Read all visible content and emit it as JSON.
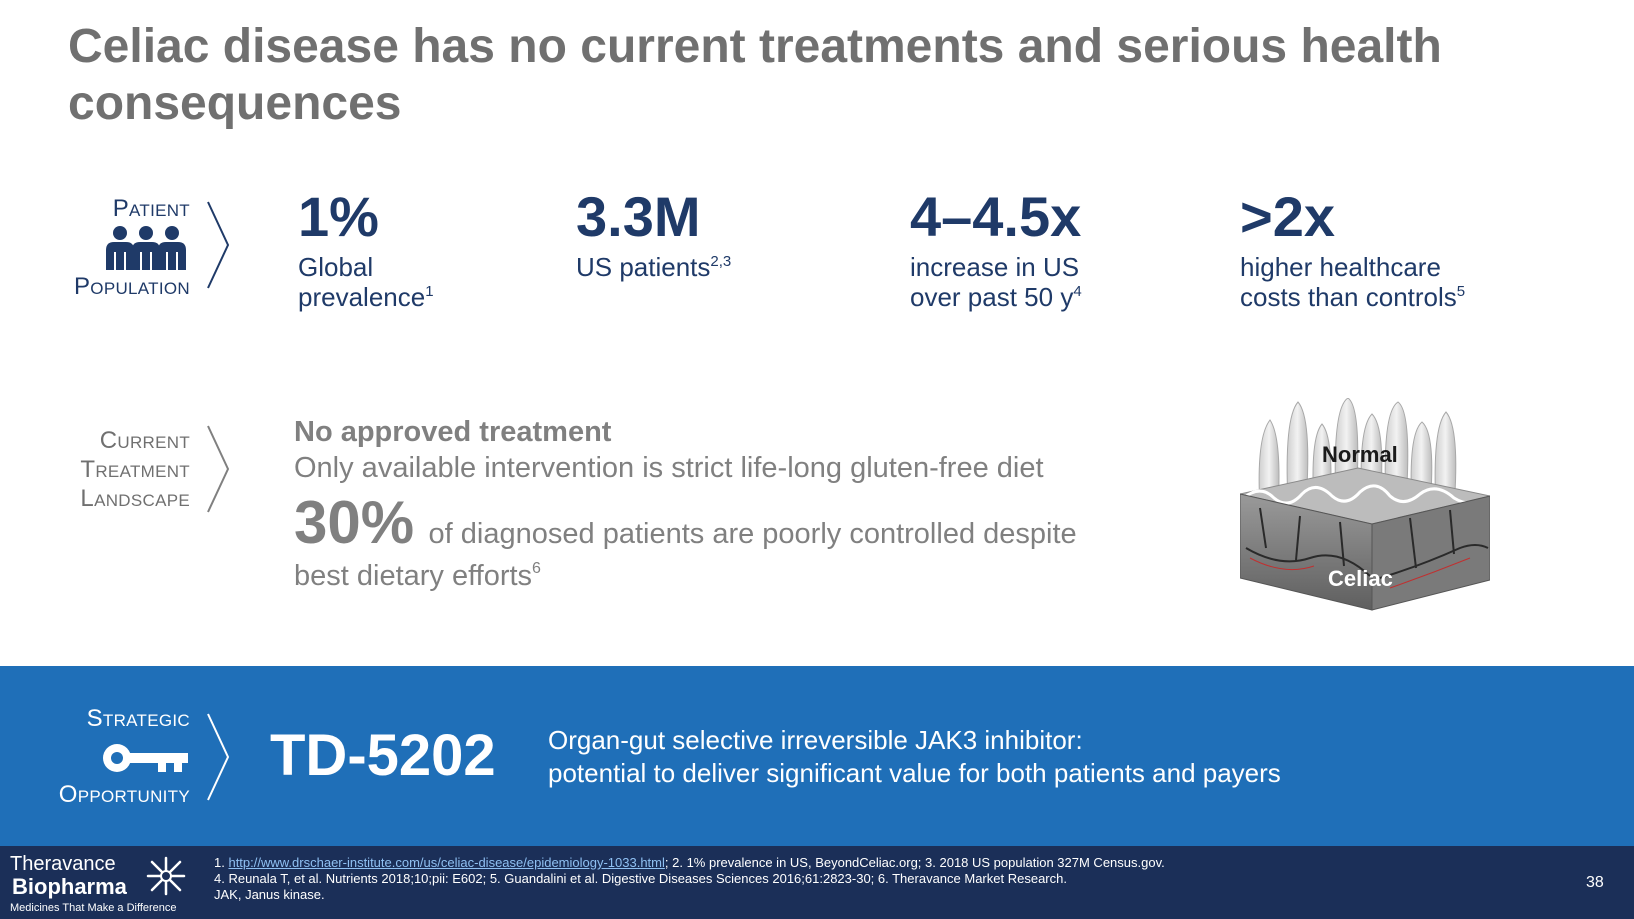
{
  "slide": {
    "title": "Celiac disease has no current treatments and serious health consequences",
    "page_number": "38"
  },
  "patient_population": {
    "label_line1": "Patient",
    "label_line2": "Population",
    "icon": "people-group-icon",
    "stats": [
      {
        "value": "1%",
        "desc_line1": "Global",
        "desc_line2": "prevalence",
        "ref": "1"
      },
      {
        "value": "3.3M",
        "desc_line1": "US patients",
        "ref": "2,3"
      },
      {
        "value": "4–4.5x",
        "desc_line1": "increase in US",
        "desc_line2": "over past 50 y",
        "ref": "4"
      },
      {
        "value": ">2x",
        "desc_line1": "higher healthcare",
        "desc_line2": "costs than controls",
        "ref": "5"
      }
    ]
  },
  "treatment_landscape": {
    "label_line1": "Current",
    "label_line2": "Treatment",
    "label_line3": "Landscape",
    "headline": "No approved treatment",
    "line": "Only available intervention is strict life-long gluten-free diet",
    "pct": "30%",
    "pct_text": "of diagnosed patients are poorly controlled despite",
    "pct_text_line2": "best dietary efforts",
    "ref": "6",
    "image_labels": {
      "normal": "Normal",
      "celiac": "Celiac"
    }
  },
  "strategic_opportunity": {
    "label_line1": "Strategic",
    "label_line2": "Opportunity",
    "icon": "key-icon",
    "drug": "TD-5202",
    "desc_line1": "Organ-gut selective irreversible JAK3 inhibitor:",
    "desc_line2": "potential to deliver significant value for both patients and payers"
  },
  "footer": {
    "logo_line1": "Theravance",
    "logo_line2": "Biopharma",
    "logo_tagline": "Medicines That Make a Difference",
    "ref_link": "http://www.drschaer-institute.com/us/celiac-disease/epidemiology-1033.html",
    "ref_line1_rest": "; 2. 1% prevalence in US, BeyondCeliac.org; 3. 2018 US population 327M Census.gov.",
    "ref_line1_prefix": "1. ",
    "ref_line2": "4. Reunala T, et al. Nutrients 2018;10;pii: E602; 5. Guandalini et al. Digestive Diseases Sciences 2016;61:2823-30;  6. Theravance Market Research.",
    "ref_line3": "JAK, Janus kinase."
  },
  "colors": {
    "navy": "#1f3a68",
    "grey_text": "#808080",
    "title_grey": "#707070",
    "band_blue": "#1f6fb8",
    "footer_navy": "#1b2f58"
  }
}
